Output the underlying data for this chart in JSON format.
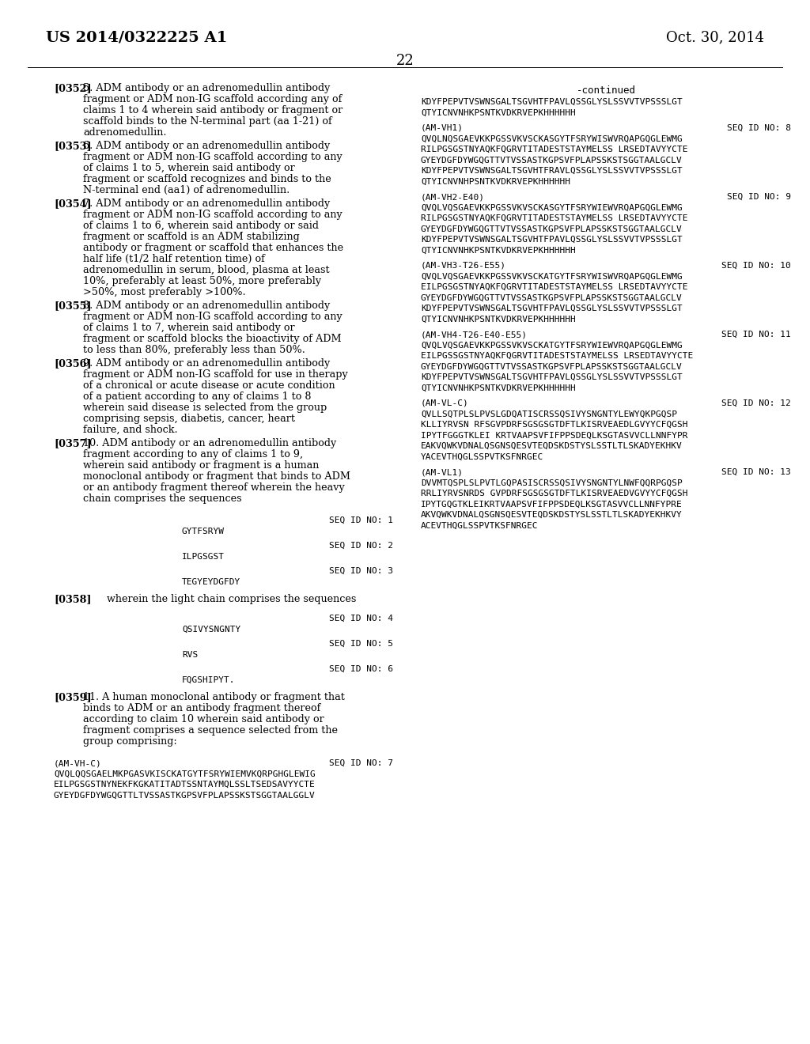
{
  "page_number": "22",
  "header_left": "US 2014/0322225 A1",
  "header_right": "Oct. 30, 2014",
  "continued_label": "-continued",
  "background_color": "#ffffff",
  "text_color": "#000000",
  "left_paragraphs": [
    {
      "tag": "[0352]",
      "text": "5.  ADM antibody or an adrenomedullin antibody fragment or ADM non-IG scaffold according any of claims 1 to 4 wherein said antibody or fragment or scaffold binds to the N-terminal part (aa 1-21) of adrenomedullin."
    },
    {
      "tag": "[0353]",
      "text": "6.  ADM antibody or an adrenomedullin antibody fragment or ADM non-IG scaffold according to any of claims 1 to 5, wherein said antibody or fragment or scaffold recognizes and binds to the N-terminal end (aa1) of adrenomedullin."
    },
    {
      "tag": "[0354]",
      "text": "7.  ADM antibody or an adrenomedullin antibody fragment or ADM non-IG scaffold according to any of claims 1 to 6, wherein said antibody or said fragment or scaffold is an ADM stabilizing antibody or fragment or scaffold that enhances the half life (t1/2 half retention time) of adrenomedullin in serum, blood, plasma at least 10%, preferably at least 50%, more preferably >50%, most preferably >100%."
    },
    {
      "tag": "[0355]",
      "text": "8.  ADM antibody or an adrenomedullin antibody fragment or ADM non-IG scaffold according to any of claims 1 to 7, wherein said antibody or fragment or scaffold blocks the bioactivity of ADM to less than 80%, preferably less than 50%."
    },
    {
      "tag": "[0356]",
      "text": "9.  ADM antibody or an adrenomedullin antibody fragment or ADM non-IG scaffold for use in therapy of a chronical or acute disease or acute condition of a patient according to any of claims 1 to 8 wherein said disease is selected from the group comprising sepsis, diabetis, cancer, heart failure, and shock."
    },
    {
      "tag": "[0357]",
      "text": "10.  ADM antibody or an adrenomedullin antibody fragment according to any of claims 1 to 9, wherein said antibody or fragment is a human monoclonal antibody or fragment that binds to ADM or an antibody fragment thereof wherein the heavy chain comprises the sequences"
    }
  ],
  "heavy_seqs": [
    {
      "seq_id": "SEQ ID NO: 1",
      "name": "GYTFSRYW"
    },
    {
      "seq_id": "SEQ ID NO: 2",
      "name": "ILPGSGST"
    },
    {
      "seq_id": "SEQ ID NO: 3",
      "name": "TEGYEYDGFDY"
    }
  ],
  "para_358": "[0358]    wherein the light chain comprises the sequences",
  "light_seqs": [
    {
      "seq_id": "SEQ ID NO: 4",
      "name": "QSIVYSNGNTY"
    },
    {
      "seq_id": "SEQ ID NO: 5",
      "name": "RVS"
    },
    {
      "seq_id": "SEQ ID NO: 6",
      "name": "FQGSHIPYT."
    }
  ],
  "para_359": {
    "tag": "[0359]",
    "text": "11.  A human monoclonal antibody or fragment that binds to ADM or an antibody fragment thereof according to claim 10 wherein said antibody or fragment comprises a sequence selected from the group comprising:"
  },
  "amvhc": {
    "label": "(AM-VH-C)",
    "seq_id": "SEQ ID NO: 7",
    "lines": [
      "QVQLQQSGAELMKPGASVKISCKATGYTFSRYWIEMVKQRPGHGLEWIG",
      "EILPGSGSTNYNEKFKGKATITADTSSNTAYMQLSSLTSEDSAVYYCTE",
      "GYEYDGFDYWGQGTTLTVSSASTKGPSVFPLAPSSKSTSGGTAALGGLV"
    ]
  },
  "right_top": [
    "KDYFPEPVTVSWNSGALTSGVHTFPAVLQSSGLYSLSSVVTVPSSSLGT",
    "QTYICNVNHKPSNTKVDKRVEPKHHHHHH"
  ],
  "right_blocks": [
    {
      "label": "(AM-VH1)",
      "seq_id": "SEQ ID NO: 8",
      "lines": [
        "QVQLNQSGAEVKKPGSSVKVSCKASGYTFSRYWISWVRQAPGQGLEWMG",
        "RILPGSGSTNYAQKFQGRVTITADESTSTAYMELSS LRSEDTAVYYCTE",
        "GYEYDGFDYWGQGTTVTVSSASTKGPSVFPLAPSSKSTSGGTAALGCLV",
        "KDYFPEPVTVSWNSGALTSGVHTFRAVLQSSGLYSLSSVVTVPSSSLGT",
        "QTYICNVNHPSNTKVDKRVEPKHHHHHH"
      ]
    },
    {
      "label": "(AM-VH2-E40)",
      "seq_id": "SEQ ID NO: 9",
      "lines": [
        "QVQLVQSGAEVKKPGSSVKVSCKASGYTFSRYWIEWVRQAPGQGLEWMG",
        "RILPGSGSTNYAQKFQGRVTITADESTSTAYMELSS LRSEDTAVYYCTE",
        "GYEYDGFDYWGQGTTVTVSSASTKGPSVFPLAPSSKSTSGGTAALGCLV",
        "KDYFPEPVTVSWNSGALTSGVHTFPAVLQSSGLYSLSSVVTVPSSSLGT",
        "QTYICNVNHKPSNTKVDKRVEPKHHHHHH"
      ]
    },
    {
      "label": "(AM-VH3-T26-E55)",
      "seq_id": "SEQ ID NO: 10",
      "lines": [
        "QVQLVQSGAEVKKPGSSVKVSCKATGYTFSRYWISWVRQAPGQGLEWMG",
        "EILPGSGSTNYAQKFQGRVTITADESTSTAYMELSS LRSEDTAVYYCTE",
        "GYEYDGFDYWGQGTTVTVSSASTKGPSVFPLAPSSKSTSGGTAALGCLV",
        "KDYFPEPVTVSWNSGALTSGVHTFPAVLQSSGLYSLSSVVTVPSSSLGT",
        "QTYICNVNHKPSNTKVDKRVEPKHHHHHH"
      ]
    },
    {
      "label": "(AM-VH4-T26-E40-E55)",
      "seq_id": "SEQ ID NO: 11",
      "lines": [
        "QVQLVQSGAEVKKPGSSVKVSCKATGYTFSRYWIEWVRQAPGQGLEWMG",
        "EILPGSSGSTNYAQKFQGRVTITADESTSTAYMELSS LRSEDTAVYYCTE",
        "GYEYDGFDYWGQGTTVTVSSASTKGPSVFPLAPSSKSTSGGTAALGCLV",
        "KDYFPEPVTVSWNSGALTSGVHTFPAVLQSSGLYSLSSVVTVPSSSLGT",
        "QTYICNVNHKPSNTKVDKRVEPKHHHHHH"
      ]
    },
    {
      "label": "(AM-VL-C)",
      "seq_id": "SEQ ID NO: 12",
      "lines": [
        "QVLLSQTPLSLPVSLGDQATISCRSSQSIVYSNGNTYLEWYQKPGQSP",
        "KLLIYRVSN RFSGVPDRFSGSGSGTDFTLKISRVEAEDLGVYYCFQGSH",
        "IPYTFGGGTKLEI KRTVAAPSVFIFPPSDEQLKSGTASVVCLLNNFYPR",
        "EAKVQWKVDNALQSGNSQESVTEQDSKDSTYSLSSTLTLSKADYEKHKV",
        "YACEVTHQGLSSPVTKSFNRGEC"
      ]
    },
    {
      "label": "(AM-VL1)",
      "seq_id": "SEQ ID NO: 13",
      "lines": [
        "DVVMTQSPLSLPVTLGQPASISCRSSQSIVYSNGNTYLNWFQQRPGQSP",
        "RRLIYRVSNRDS GVPDRFSGSGSGTDFTLKISRVEAEDVGVYYCFQGSH",
        "IPYTGQGTKLEIKRTVAAPSVFIFPPSDEQLKSGTASVVCLLNNFYPRE",
        "AKVQWKVDNALQSGNSQESVTEQDSKDSTYSLSSTLTLSKADYEKHKVY",
        "ACEVTHQGLSSPVTKSFNRGEC"
      ]
    }
  ]
}
